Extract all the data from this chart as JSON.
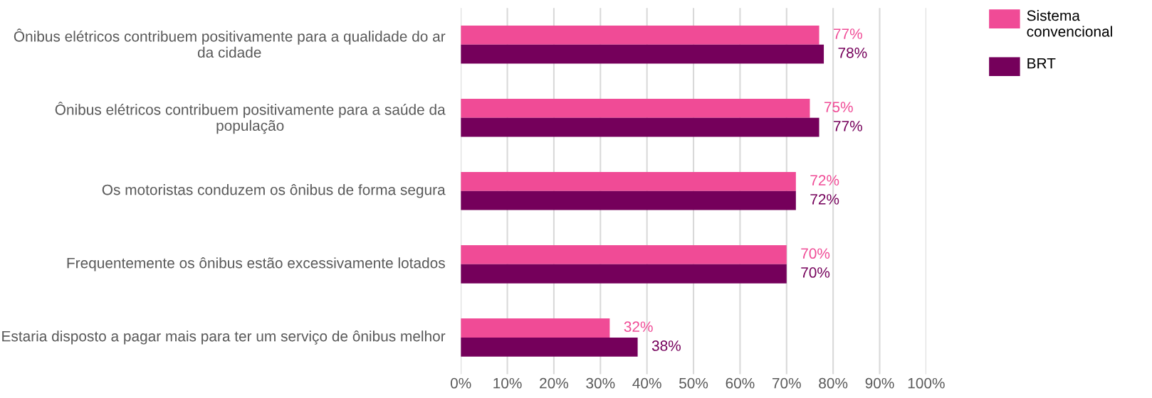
{
  "chart_data": {
    "type": "bar",
    "orientation": "horizontal",
    "categories": [
      "Ônibus elétricos contribuem positivamente para a qualidade do ar da cidade",
      "Ônibus elétricos contribuem positivamente para a saúde da população",
      "Os motoristas conduzem os ônibus de forma segura",
      "Frequentemente os ônibus estão excessivamente lotados",
      "Estaria disposto a pagar mais para ter um serviço de ônibus melhor"
    ],
    "series": [
      {
        "name": "Sistema convencional",
        "color": "#f04b96",
        "values": [
          77,
          75,
          72,
          70,
          32
        ],
        "value_labels": [
          "77%",
          "75%",
          "72%",
          "70%",
          "32%"
        ]
      },
      {
        "name": "BRT",
        "color": "#75005b",
        "values": [
          78,
          77,
          72,
          70,
          38
        ],
        "value_labels": [
          "78%",
          "77%",
          "72%",
          "70%",
          "38%"
        ]
      }
    ],
    "xlim": [
      0,
      100
    ],
    "xticks": [
      {
        "value": 0,
        "label": "0%"
      },
      {
        "value": 10,
        "label": "10%"
      },
      {
        "value": 20,
        "label": "20%"
      },
      {
        "value": 30,
        "label": "30%"
      },
      {
        "value": 40,
        "label": "40%"
      },
      {
        "value": 50,
        "label": "50%"
      },
      {
        "value": 60,
        "label": "60%"
      },
      {
        "value": 70,
        "label": "70%"
      },
      {
        "value": 80,
        "label": "80%"
      },
      {
        "value": 90,
        "label": "90%"
      },
      {
        "value": 100,
        "label": "100%"
      }
    ],
    "grid": "x",
    "legend": "top right"
  }
}
